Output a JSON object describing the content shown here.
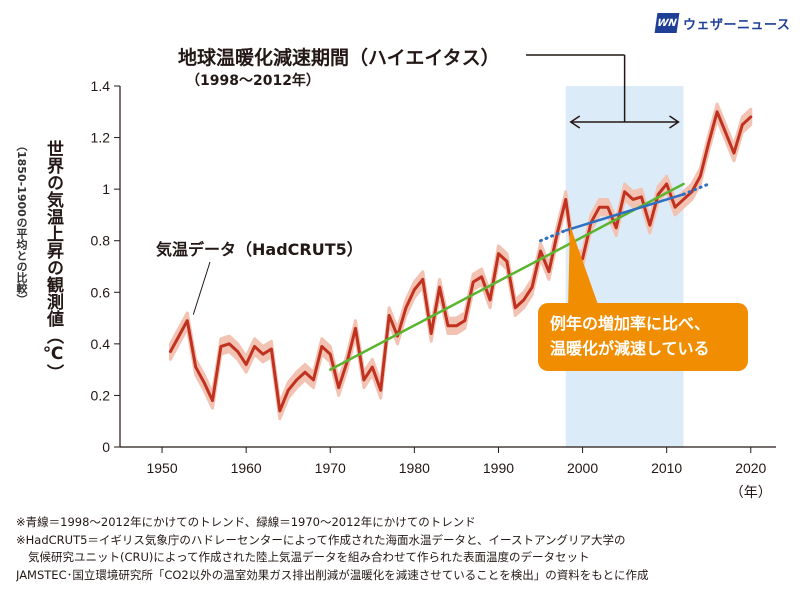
{
  "brand": {
    "mark": "WN",
    "name": "ウェザーニュース"
  },
  "annotations": {
    "hiatus_title": "地球温暖化減速期間（ハイエイタス）",
    "hiatus_years": "（1998〜2012年）",
    "series_label": "気温データ（HadCRUT5）",
    "callout_line1": "例年の増加率に比べ、",
    "callout_line2": "温暖化が減速している"
  },
  "axis": {
    "ylabel_main": "世界の気温上昇の観測値（℃）",
    "ylabel_sub": "（1850-1900の平均との比較）",
    "x_unit": "（年）"
  },
  "notes": [
    "※青線＝1998〜2012年にかけてのトレンド、緑線＝1970〜2012年にかけてのトレンド",
    "※HadCRUT5＝イギリス気象庁のハドレーセンターによって作成された海面水温データと、イーストアングリア大学の",
    "気候研究ユニット(CRU)によって作成された陸上気温データを組み合わせて作られた表面温度のデータセット",
    "JAMSTEC･国立環境研究所「CO2以外の温室効果ガス排出削減が温暖化を減速させていることを検出」の資料をもとに作成"
  ],
  "colors": {
    "line": "#c0311f",
    "band": "#f2c2b2",
    "hiatus_shade": "#dcebf8",
    "green_trend": "#5cb531",
    "blue_trend": "#2e6fc0",
    "callout": "#f18d00",
    "brand": "#1f3f97"
  },
  "chart_data": {
    "type": "line",
    "xlim": [
      1945,
      2023
    ],
    "ylim": [
      0,
      1.4
    ],
    "xticks": [
      1950,
      1960,
      1970,
      1980,
      1990,
      2000,
      2010,
      2020
    ],
    "yticks": [
      0,
      0.2,
      0.4,
      0.6,
      0.8,
      1,
      1.2,
      1.4
    ],
    "ytick_labels": [
      "0",
      "0.2",
      "0.4",
      "0.6",
      "0.8",
      "1",
      "1.2",
      "1.4"
    ],
    "grid": false,
    "shaded_period": [
      1998,
      2012
    ],
    "series": [
      {
        "x": [
          1951,
          1952,
          1953,
          1954,
          1955,
          1956,
          1957,
          1958,
          1959,
          1960,
          1961,
          1962,
          1963,
          1964,
          1965,
          1966,
          1967,
          1968,
          1969,
          1970,
          1971,
          1972,
          1973,
          1974,
          1975,
          1976,
          1977,
          1978,
          1979,
          1980,
          1981,
          1982,
          1983,
          1984,
          1985,
          1986,
          1987,
          1988,
          1989,
          1990,
          1991,
          1992,
          1993,
          1994,
          1995,
          1996,
          1997,
          1998,
          1999,
          2000,
          2001,
          2002,
          2003,
          2004,
          2005,
          2006,
          2007,
          2008,
          2009,
          2010,
          2011,
          2012,
          2013,
          2014,
          2015,
          2016,
          2017,
          2018,
          2019,
          2020
        ],
        "values": [
          0.37,
          0.43,
          0.49,
          0.31,
          0.25,
          0.18,
          0.39,
          0.4,
          0.37,
          0.32,
          0.39,
          0.36,
          0.38,
          0.14,
          0.22,
          0.26,
          0.29,
          0.26,
          0.39,
          0.36,
          0.23,
          0.33,
          0.46,
          0.26,
          0.31,
          0.22,
          0.51,
          0.43,
          0.54,
          0.61,
          0.65,
          0.44,
          0.62,
          0.47,
          0.47,
          0.49,
          0.64,
          0.66,
          0.57,
          0.75,
          0.72,
          0.54,
          0.57,
          0.62,
          0.76,
          0.68,
          0.83,
          0.96,
          0.73,
          0.73,
          0.87,
          0.93,
          0.93,
          0.85,
          0.99,
          0.96,
          0.97,
          0.86,
          0.98,
          1.02,
          0.93,
          0.96,
          0.99,
          1.05,
          1.18,
          1.3,
          1.22,
          1.14,
          1.25,
          1.28
        ],
        "band": 0.03
      }
    ],
    "trends": [
      {
        "x": [
          1970,
          2012
        ],
        "y": [
          0.3,
          1.02
        ],
        "style": "solid",
        "color": "#5cb531"
      },
      {
        "x": [
          1998,
          2012
        ],
        "y": [
          0.84,
          0.98
        ],
        "style": "solid",
        "color": "#2e6fc0"
      },
      {
        "x": [
          1995,
          1998
        ],
        "y": [
          0.8,
          0.84
        ],
        "style": "dotted",
        "color": "#2e6fc0"
      },
      {
        "x": [
          2012,
          2015
        ],
        "y": [
          0.98,
          1.02
        ],
        "style": "dotted",
        "color": "#2e6fc0"
      }
    ]
  }
}
